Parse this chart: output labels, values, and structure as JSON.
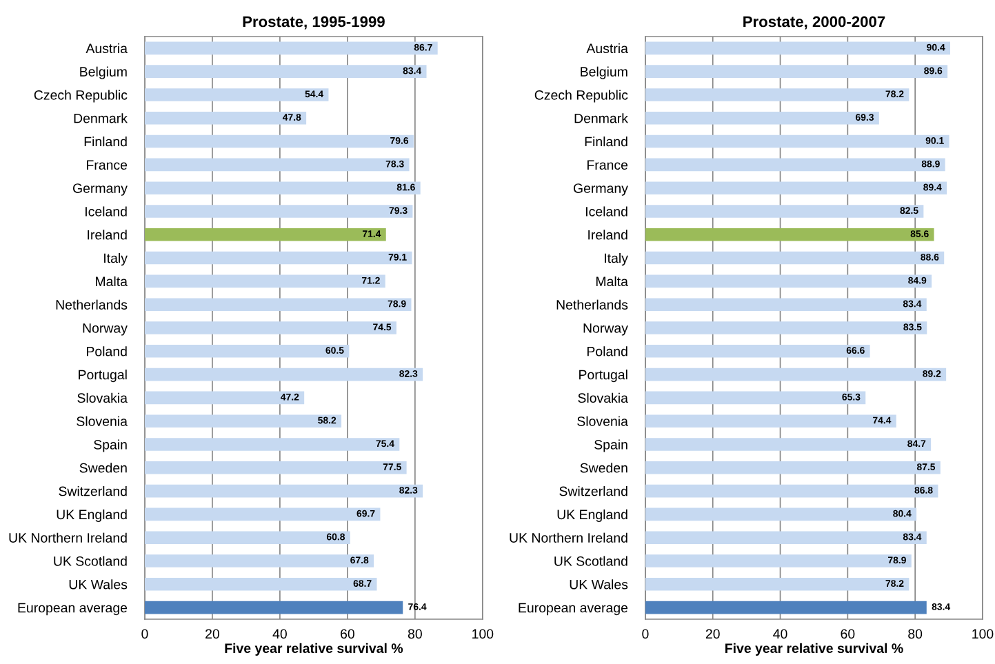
{
  "chart_data": [
    {
      "type": "bar",
      "orientation": "horizontal",
      "title": "Prostate, 1995-1999",
      "xlabel": "Five year relative survival %",
      "categories": [
        "Austria",
        "Belgium",
        "Czech Republic",
        "Denmark",
        "Finland",
        "France",
        "Germany",
        "Iceland",
        "Ireland",
        "Italy",
        "Malta",
        "Netherlands",
        "Norway",
        "Poland",
        "Portugal",
        "Slovakia",
        "Slovenia",
        "Spain",
        "Sweden",
        "Switzerland",
        "UK England",
        "UK Northern Ireland",
        "UK Scotland",
        "UK Wales",
        "European average"
      ],
      "values": [
        86.7,
        83.4,
        54.4,
        47.8,
        79.6,
        78.3,
        81.6,
        79.3,
        71.4,
        79.1,
        71.2,
        78.9,
        74.5,
        60.5,
        82.3,
        47.2,
        58.2,
        75.4,
        77.5,
        82.3,
        69.7,
        60.8,
        67.8,
        68.7,
        76.4
      ],
      "colors": [
        "#c6d9f1",
        "#c6d9f1",
        "#c6d9f1",
        "#c6d9f1",
        "#c6d9f1",
        "#c6d9f1",
        "#c6d9f1",
        "#c6d9f1",
        "#9bbb59",
        "#c6d9f1",
        "#c6d9f1",
        "#c6d9f1",
        "#c6d9f1",
        "#c6d9f1",
        "#c6d9f1",
        "#c6d9f1",
        "#c6d9f1",
        "#c6d9f1",
        "#c6d9f1",
        "#c6d9f1",
        "#c6d9f1",
        "#c6d9f1",
        "#c6d9f1",
        "#c6d9f1",
        "#4f81bd"
      ],
      "xlim": [
        0,
        100
      ],
      "xticks": [
        0,
        20,
        40,
        60,
        80,
        100
      ],
      "grid": "x",
      "data_labels": true
    },
    {
      "type": "bar",
      "orientation": "horizontal",
      "title": "Prostate, 2000-2007",
      "xlabel": "Five year relative survival %",
      "categories": [
        "Austria",
        "Belgium",
        "Czech Republic",
        "Denmark",
        "Finland",
        "France",
        "Germany",
        "Iceland",
        "Ireland",
        "Italy",
        "Malta",
        "Netherlands",
        "Norway",
        "Poland",
        "Portugal",
        "Slovakia",
        "Slovenia",
        "Spain",
        "Sweden",
        "Switzerland",
        "UK England",
        "UK Northern Ireland",
        "UK Scotland",
        "UK Wales",
        "European average"
      ],
      "values": [
        90.4,
        89.6,
        78.2,
        69.3,
        90.1,
        88.9,
        89.4,
        82.5,
        85.6,
        88.6,
        84.9,
        83.4,
        83.5,
        66.6,
        89.2,
        65.3,
        74.4,
        84.7,
        87.5,
        86.8,
        80.4,
        83.4,
        78.9,
        78.2,
        83.4
      ],
      "colors": [
        "#c6d9f1",
        "#c6d9f1",
        "#c6d9f1",
        "#c6d9f1",
        "#c6d9f1",
        "#c6d9f1",
        "#c6d9f1",
        "#c6d9f1",
        "#9bbb59",
        "#c6d9f1",
        "#c6d9f1",
        "#c6d9f1",
        "#c6d9f1",
        "#c6d9f1",
        "#c6d9f1",
        "#c6d9f1",
        "#c6d9f1",
        "#c6d9f1",
        "#c6d9f1",
        "#c6d9f1",
        "#c6d9f1",
        "#c6d9f1",
        "#c6d9f1",
        "#c6d9f1",
        "#4f81bd"
      ],
      "xlim": [
        0,
        100
      ],
      "xticks": [
        0,
        20,
        40,
        60,
        80,
        100
      ],
      "grid": "x",
      "data_labels": true
    }
  ]
}
